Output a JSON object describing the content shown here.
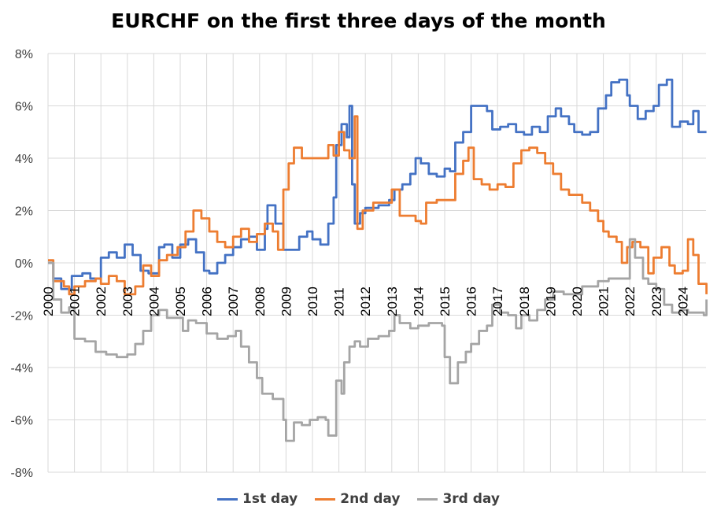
{
  "chart_data": {
    "type": "line",
    "title": "EURCHF on the first three days of the month",
    "xlabel": "",
    "ylabel": "",
    "ylim": [
      -8,
      8
    ],
    "yticks": [
      "-8%",
      "-6%",
      "-4%",
      "-2%",
      "0%",
      "2%",
      "4%",
      "6%",
      "8%"
    ],
    "xticks": [
      "2000",
      "2001",
      "2002",
      "2003",
      "2004",
      "2005",
      "2006",
      "2007",
      "2008",
      "2009",
      "2010",
      "2011",
      "2012",
      "2013",
      "2014",
      "2015",
      "2016",
      "2017",
      "2018",
      "2019",
      "2020",
      "2021",
      "2022",
      "2023",
      "2024"
    ],
    "grid": true,
    "legend_position": "bottom",
    "line_style": "step",
    "series": [
      {
        "name": "1st day",
        "color": "#4472C4",
        "points": [
          [
            2000.0,
            0
          ],
          [
            2000.2,
            -0.6
          ],
          [
            2000.5,
            -1.0
          ],
          [
            2000.9,
            -0.5
          ],
          [
            2001.3,
            -0.4
          ],
          [
            2001.6,
            -0.6
          ],
          [
            2002.0,
            0.2
          ],
          [
            2002.3,
            0.4
          ],
          [
            2002.6,
            0.2
          ],
          [
            2002.9,
            0.7
          ],
          [
            2003.2,
            0.3
          ],
          [
            2003.5,
            -0.3
          ],
          [
            2003.8,
            -0.4
          ],
          [
            2004.2,
            0.6
          ],
          [
            2004.4,
            0.7
          ],
          [
            2004.7,
            0.2
          ],
          [
            2005.0,
            0.7
          ],
          [
            2005.3,
            0.9
          ],
          [
            2005.6,
            0.4
          ],
          [
            2005.9,
            -0.3
          ],
          [
            2006.1,
            -0.4
          ],
          [
            2006.4,
            0
          ],
          [
            2006.7,
            0.3
          ],
          [
            2007.0,
            0.6
          ],
          [
            2007.3,
            0.9
          ],
          [
            2007.6,
            1.0
          ],
          [
            2007.9,
            0.5
          ],
          [
            2008.2,
            1.3
          ],
          [
            2008.3,
            2.2
          ],
          [
            2008.6,
            1.5
          ],
          [
            2008.9,
            0.5
          ],
          [
            2009.2,
            0.5
          ],
          [
            2009.5,
            1.0
          ],
          [
            2009.8,
            1.2
          ],
          [
            2010.0,
            0.9
          ],
          [
            2010.3,
            0.7
          ],
          [
            2010.6,
            1.5
          ],
          [
            2010.8,
            2.5
          ],
          [
            2010.9,
            4.5
          ],
          [
            2011.1,
            5.3
          ],
          [
            2011.3,
            4.8
          ],
          [
            2011.4,
            6.0
          ],
          [
            2011.5,
            3.0
          ],
          [
            2011.6,
            1.5
          ],
          [
            2011.8,
            1.9
          ],
          [
            2012.0,
            2.1
          ],
          [
            2012.5,
            2.2
          ],
          [
            2012.9,
            2.4
          ],
          [
            2013.1,
            2.8
          ],
          [
            2013.4,
            3.0
          ],
          [
            2013.7,
            3.4
          ],
          [
            2013.9,
            4.0
          ],
          [
            2014.1,
            3.8
          ],
          [
            2014.4,
            3.4
          ],
          [
            2014.7,
            3.3
          ],
          [
            2015.0,
            3.6
          ],
          [
            2015.2,
            3.5
          ],
          [
            2015.4,
            4.6
          ],
          [
            2015.7,
            5.0
          ],
          [
            2016.0,
            6.0
          ],
          [
            2016.3,
            6.0
          ],
          [
            2016.6,
            5.8
          ],
          [
            2016.8,
            5.1
          ],
          [
            2017.1,
            5.2
          ],
          [
            2017.4,
            5.3
          ],
          [
            2017.7,
            5.0
          ],
          [
            2018.0,
            4.9
          ],
          [
            2018.3,
            5.2
          ],
          [
            2018.6,
            5.0
          ],
          [
            2018.9,
            5.6
          ],
          [
            2019.2,
            5.9
          ],
          [
            2019.4,
            5.6
          ],
          [
            2019.7,
            5.3
          ],
          [
            2019.9,
            5.0
          ],
          [
            2020.2,
            4.9
          ],
          [
            2020.5,
            5.0
          ],
          [
            2020.8,
            5.9
          ],
          [
            2021.1,
            6.4
          ],
          [
            2021.3,
            6.9
          ],
          [
            2021.6,
            7.0
          ],
          [
            2021.9,
            6.4
          ],
          [
            2022.0,
            6.0
          ],
          [
            2022.3,
            5.5
          ],
          [
            2022.6,
            5.8
          ],
          [
            2022.9,
            6.0
          ],
          [
            2023.1,
            6.8
          ],
          [
            2023.4,
            7.0
          ],
          [
            2023.6,
            5.2
          ],
          [
            2023.9,
            5.4
          ],
          [
            2024.2,
            5.3
          ],
          [
            2024.4,
            5.8
          ],
          [
            2024.6,
            5.0
          ],
          [
            2024.9,
            5.0
          ]
        ]
      },
      {
        "name": "2nd day",
        "color": "#ED7D31",
        "points": [
          [
            2000.0,
            0.1
          ],
          [
            2000.2,
            -0.7
          ],
          [
            2000.6,
            -0.9
          ],
          [
            2000.8,
            -1.2
          ],
          [
            2001.0,
            -0.9
          ],
          [
            2001.4,
            -0.7
          ],
          [
            2001.8,
            -0.6
          ],
          [
            2002.0,
            -0.8
          ],
          [
            2002.3,
            -0.5
          ],
          [
            2002.6,
            -0.7
          ],
          [
            2002.9,
            -1.2
          ],
          [
            2003.3,
            -0.9
          ],
          [
            2003.6,
            -0.1
          ],
          [
            2003.9,
            -0.5
          ],
          [
            2004.2,
            0.1
          ],
          [
            2004.5,
            0.3
          ],
          [
            2004.9,
            0.6
          ],
          [
            2005.2,
            1.2
          ],
          [
            2005.5,
            2.0
          ],
          [
            2005.8,
            1.7
          ],
          [
            2006.1,
            1.2
          ],
          [
            2006.4,
            0.8
          ],
          [
            2006.7,
            0.6
          ],
          [
            2007.0,
            1.0
          ],
          [
            2007.3,
            1.3
          ],
          [
            2007.6,
            0.8
          ],
          [
            2007.9,
            1.1
          ],
          [
            2008.2,
            1.5
          ],
          [
            2008.5,
            1.2
          ],
          [
            2008.7,
            0.5
          ],
          [
            2008.9,
            2.8
          ],
          [
            2009.1,
            3.8
          ],
          [
            2009.3,
            4.4
          ],
          [
            2009.6,
            4.0
          ],
          [
            2010.0,
            4.0
          ],
          [
            2010.3,
            4.0
          ],
          [
            2010.6,
            4.5
          ],
          [
            2010.8,
            4.1
          ],
          [
            2011.0,
            5.0
          ],
          [
            2011.2,
            4.3
          ],
          [
            2011.4,
            4.0
          ],
          [
            2011.6,
            5.6
          ],
          [
            2011.7,
            1.3
          ],
          [
            2011.9,
            2.0
          ],
          [
            2012.3,
            2.3
          ],
          [
            2012.7,
            2.3
          ],
          [
            2013.0,
            2.8
          ],
          [
            2013.3,
            1.8
          ],
          [
            2013.6,
            1.8
          ],
          [
            2013.9,
            1.6
          ],
          [
            2014.1,
            1.5
          ],
          [
            2014.3,
            2.3
          ],
          [
            2014.7,
            2.4
          ],
          [
            2015.1,
            2.4
          ],
          [
            2015.4,
            3.4
          ],
          [
            2015.7,
            3.9
          ],
          [
            2015.9,
            4.4
          ],
          [
            2016.1,
            3.2
          ],
          [
            2016.4,
            3.0
          ],
          [
            2016.7,
            2.8
          ],
          [
            2017.0,
            3.0
          ],
          [
            2017.3,
            2.9
          ],
          [
            2017.6,
            3.8
          ],
          [
            2017.9,
            4.3
          ],
          [
            2018.2,
            4.4
          ],
          [
            2018.5,
            4.2
          ],
          [
            2018.8,
            3.8
          ],
          [
            2019.1,
            3.4
          ],
          [
            2019.4,
            2.8
          ],
          [
            2019.7,
            2.6
          ],
          [
            2019.9,
            2.6
          ],
          [
            2020.2,
            2.3
          ],
          [
            2020.5,
            2.0
          ],
          [
            2020.8,
            1.6
          ],
          [
            2021.0,
            1.2
          ],
          [
            2021.2,
            1.0
          ],
          [
            2021.5,
            0.8
          ],
          [
            2021.7,
            0.0
          ],
          [
            2021.9,
            0.6
          ],
          [
            2022.1,
            0.8
          ],
          [
            2022.4,
            0.6
          ],
          [
            2022.7,
            -0.4
          ],
          [
            2022.9,
            0.2
          ],
          [
            2023.2,
            0.6
          ],
          [
            2023.5,
            -0.1
          ],
          [
            2023.7,
            -0.4
          ],
          [
            2024.0,
            -0.3
          ],
          [
            2024.2,
            0.9
          ],
          [
            2024.4,
            0.3
          ],
          [
            2024.6,
            -0.8
          ],
          [
            2024.9,
            -1.2
          ]
        ]
      },
      {
        "name": "3rd day",
        "color": "#A5A5A5",
        "points": [
          [
            2000.0,
            0
          ],
          [
            2000.2,
            -1.4
          ],
          [
            2000.5,
            -1.9
          ],
          [
            2000.8,
            -1.7
          ],
          [
            2001.0,
            -2.9
          ],
          [
            2001.4,
            -3.0
          ],
          [
            2001.8,
            -3.4
          ],
          [
            2002.2,
            -3.5
          ],
          [
            2002.6,
            -3.6
          ],
          [
            2003.0,
            -3.5
          ],
          [
            2003.3,
            -3.1
          ],
          [
            2003.6,
            -2.6
          ],
          [
            2003.9,
            -2.0
          ],
          [
            2004.2,
            -1.8
          ],
          [
            2004.5,
            -2.1
          ],
          [
            2004.8,
            -2.1
          ],
          [
            2005.1,
            -2.6
          ],
          [
            2005.3,
            -2.2
          ],
          [
            2005.6,
            -2.3
          ],
          [
            2006.0,
            -2.7
          ],
          [
            2006.4,
            -2.9
          ],
          [
            2006.8,
            -2.8
          ],
          [
            2007.1,
            -2.6
          ],
          [
            2007.3,
            -3.2
          ],
          [
            2007.6,
            -3.8
          ],
          [
            2007.9,
            -4.4
          ],
          [
            2008.1,
            -5.0
          ],
          [
            2008.5,
            -5.2
          ],
          [
            2008.9,
            -6.0
          ],
          [
            2009.0,
            -6.8
          ],
          [
            2009.3,
            -6.1
          ],
          [
            2009.6,
            -6.2
          ],
          [
            2009.9,
            -6.0
          ],
          [
            2010.2,
            -5.9
          ],
          [
            2010.5,
            -6.0
          ],
          [
            2010.6,
            -6.6
          ],
          [
            2010.9,
            -4.5
          ],
          [
            2011.1,
            -5.0
          ],
          [
            2011.2,
            -3.8
          ],
          [
            2011.4,
            -3.2
          ],
          [
            2011.6,
            -3.0
          ],
          [
            2011.8,
            -3.2
          ],
          [
            2012.1,
            -2.9
          ],
          [
            2012.5,
            -2.8
          ],
          [
            2012.9,
            -2.6
          ],
          [
            2013.1,
            -2.0
          ],
          [
            2013.3,
            -2.3
          ],
          [
            2013.7,
            -2.5
          ],
          [
            2014.0,
            -2.4
          ],
          [
            2014.4,
            -2.3
          ],
          [
            2014.9,
            -2.4
          ],
          [
            2015.0,
            -3.6
          ],
          [
            2015.2,
            -4.6
          ],
          [
            2015.5,
            -3.8
          ],
          [
            2015.8,
            -3.4
          ],
          [
            2016.0,
            -3.1
          ],
          [
            2016.3,
            -2.6
          ],
          [
            2016.6,
            -2.4
          ],
          [
            2016.8,
            -1.6
          ],
          [
            2017.1,
            -1.9
          ],
          [
            2017.4,
            -2.0
          ],
          [
            2017.7,
            -2.5
          ],
          [
            2017.9,
            -2.0
          ],
          [
            2018.2,
            -2.2
          ],
          [
            2018.5,
            -1.8
          ],
          [
            2018.8,
            -1.4
          ],
          [
            2019.1,
            -1.1
          ],
          [
            2019.5,
            -1.2
          ],
          [
            2019.9,
            -1.2
          ],
          [
            2020.2,
            -0.9
          ],
          [
            2020.5,
            -0.9
          ],
          [
            2020.8,
            -0.7
          ],
          [
            2021.2,
            -0.6
          ],
          [
            2021.5,
            -0.6
          ],
          [
            2021.8,
            -0.6
          ],
          [
            2022.0,
            0.9
          ],
          [
            2022.2,
            0.2
          ],
          [
            2022.5,
            -0.6
          ],
          [
            2022.7,
            -0.8
          ],
          [
            2023.0,
            -1.0
          ],
          [
            2023.3,
            -1.6
          ],
          [
            2023.6,
            -1.9
          ],
          [
            2023.9,
            -1.8
          ],
          [
            2024.2,
            -1.9
          ],
          [
            2024.5,
            -1.9
          ],
          [
            2024.8,
            -2.0
          ],
          [
            2024.9,
            -1.4
          ]
        ]
      }
    ]
  }
}
